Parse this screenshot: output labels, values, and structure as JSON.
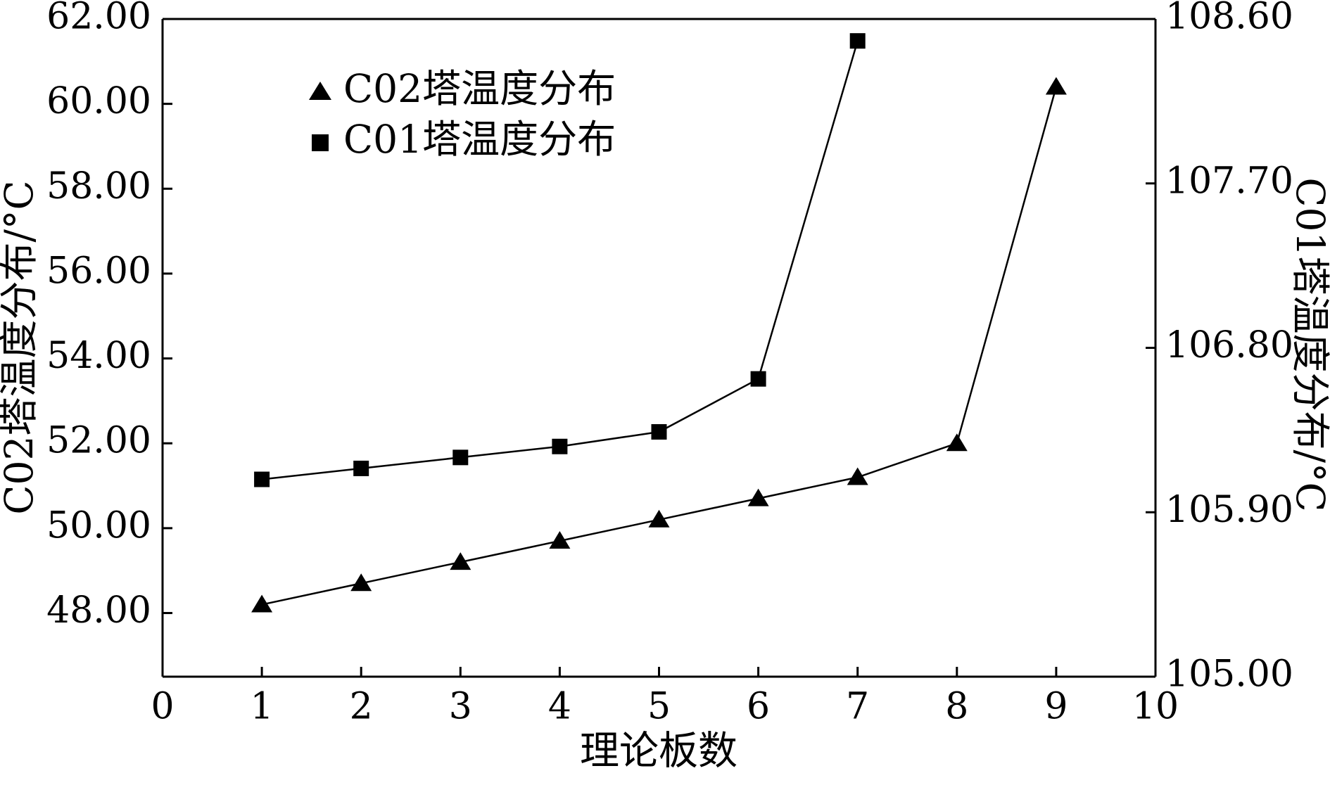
{
  "chart_data": {
    "type": "line",
    "title": "",
    "xlabel": "理论板数",
    "ylabel_left": "C02塔温度分布/°C",
    "ylabel_right": "C01塔温度分布/°C",
    "xlim": [
      0,
      10
    ],
    "ylim_left": [
      46.5,
      62.0
    ],
    "ylim_right": [
      105.0,
      108.6
    ],
    "x_ticks": [
      "0",
      "1",
      "2",
      "3",
      "4",
      "5",
      "6",
      "7",
      "8",
      "9",
      "10"
    ],
    "y_ticks_left": [
      "48.00",
      "50.00",
      "52.00",
      "54.00",
      "56.00",
      "58.00",
      "60.00",
      "62.00"
    ],
    "y_ticks_right": [
      "105.00",
      "105.90",
      "106.80",
      "107.70",
      "108.60"
    ],
    "grid": false,
    "legend_position": "top-left",
    "series": [
      {
        "name": "C02塔温度分布",
        "axis": "left",
        "marker": "triangle",
        "x": [
          1,
          2,
          3,
          4,
          5,
          6,
          7,
          8,
          9
        ],
        "values": [
          48.2,
          48.7,
          49.2,
          49.7,
          50.2,
          50.7,
          51.2,
          52.0,
          60.4
        ]
      },
      {
        "name": "C01塔温度分布",
        "axis": "right",
        "marker": "square",
        "x": [
          1,
          2,
          3,
          4,
          5,
          6,
          7
        ],
        "values": [
          106.08,
          106.14,
          106.2,
          106.26,
          106.34,
          106.63,
          108.48
        ]
      }
    ],
    "colors": {
      "line": "#000000",
      "marker": "#000000",
      "background": "#ffffff"
    }
  }
}
